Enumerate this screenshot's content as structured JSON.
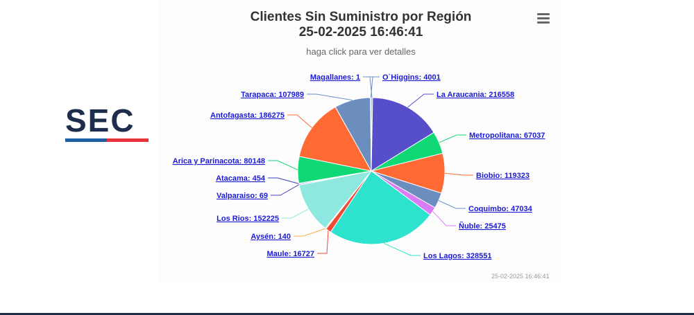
{
  "logo_text": "SEC",
  "timestamp": "25-02-2025 16:46:41",
  "chart_data": {
    "type": "pie",
    "title_line1": "Clientes Sin Suministro por Región",
    "title_line2": "25-02-2025 16:46:41",
    "subtitle": "haga click para ver detalles",
    "slices": [
      {
        "name": "O`Higgins",
        "value": 4001,
        "color": "#6c8ebf"
      },
      {
        "name": "La Araucania",
        "value": 216558,
        "color": "#574fc9"
      },
      {
        "name": "Metropolitana",
        "value": 67037,
        "color": "#10d876"
      },
      {
        "name": "Biobio",
        "value": 119323,
        "color": "#ff6a34"
      },
      {
        "name": "Coquimbo",
        "value": 47034,
        "color": "#6c8ebf"
      },
      {
        "name": "Ñuble",
        "value": 25475,
        "color": "#d97cf5"
      },
      {
        "name": "Los Lagos",
        "value": 328551,
        "color": "#2ee3cd"
      },
      {
        "name": "Maule",
        "value": 16727,
        "color": "#ec4b36"
      },
      {
        "name": "Aysén",
        "value": 140,
        "color": "#f3b14a"
      },
      {
        "name": "Los Rios",
        "value": 152225,
        "color": "#8ee8e0"
      },
      {
        "name": "Valparaiso",
        "value": 69,
        "color": "#4a40b8"
      },
      {
        "name": "Atacama",
        "value": 454,
        "color": "#3b3bc9"
      },
      {
        "name": "Arica y Parinacota",
        "value": 80148,
        "color": "#10d876"
      },
      {
        "name": "Antofagasta",
        "value": 186275,
        "color": "#ff6a34"
      },
      {
        "name": "Tarapaca",
        "value": 107989,
        "color": "#6c8ebf"
      },
      {
        "name": "Magallanes",
        "value": 1,
        "color": "#6c8ebf"
      }
    ]
  }
}
